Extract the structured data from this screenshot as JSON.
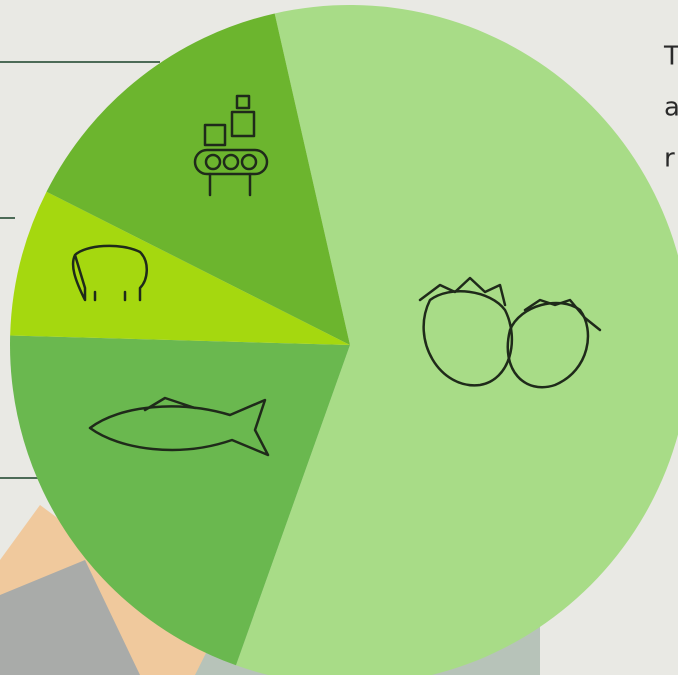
{
  "chart_data": {
    "type": "pie",
    "values": [
      59,
      20,
      7,
      14
    ],
    "colors": [
      "#a8dc87",
      "#6ab84f",
      "#a5d80f",
      "#6cb52e"
    ]
  },
  "side_text": [
    "T",
    "a",
    "r"
  ]
}
